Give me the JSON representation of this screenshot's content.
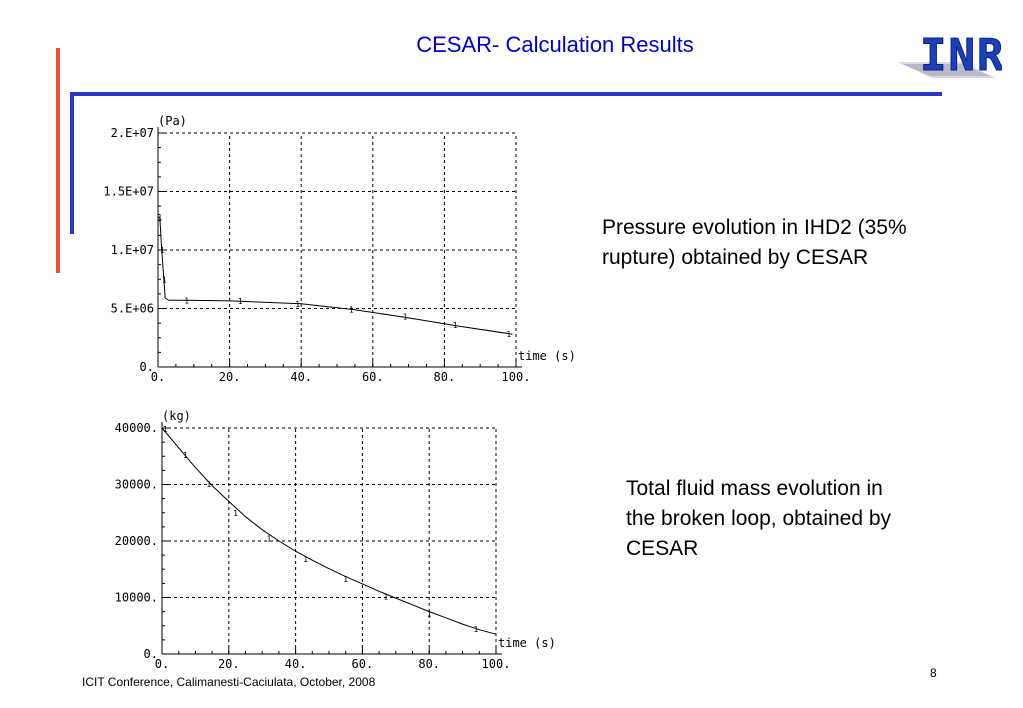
{
  "slide": {
    "title": "CESAR- Calculation Results",
    "footer": "ICIT Conference, Calimanesti-Caciulata, October, 2008",
    "page_number": "8",
    "logo_text": "INR",
    "desc_pressure": "Pressure evolution in IHD2 (35% rupture) obtained by CESAR",
    "desc_mass": "Total fluid mass evolution in the broken loop, obtained by CESAR"
  },
  "colors": {
    "title": "#0000cc",
    "accent_red": "#e8522e",
    "accent_blue": "#2a35c8"
  },
  "chart_data": [
    {
      "type": "line",
      "title": "",
      "ylabel": "(Pa)",
      "xlabel": "time (s)",
      "xlim": [
        0,
        100
      ],
      "ylim": [
        0,
        20000000
      ],
      "x_ticks": [
        "0.",
        "20.",
        "40.",
        "60.",
        "80.",
        "100."
      ],
      "y_ticks": [
        "0.",
        "5.E+06",
        "1.E+07",
        "1.5E+07",
        "2.E+07"
      ],
      "grid": true,
      "series": [
        {
          "marker": "1",
          "x": [
            0,
            0.5,
            1,
            1.5,
            2,
            3,
            8,
            20,
            40,
            55,
            70,
            84,
            99
          ],
          "y": [
            12800000,
            12800000,
            10200000,
            8000000,
            5900000,
            5700000,
            5700000,
            5650000,
            5400000,
            4900000,
            4200000,
            3500000,
            2800000
          ],
          "marker_x": [
            0.5,
            1.2,
            1.8,
            8,
            23,
            39,
            54,
            69,
            83,
            98
          ],
          "marker_y": [
            12800000,
            10000000,
            7500000,
            5700000,
            5650000,
            5400000,
            4900000,
            4300000,
            3600000,
            2800000
          ]
        }
      ]
    },
    {
      "type": "line",
      "title": "",
      "ylabel": "(kg)",
      "xlabel": "time (s)",
      "xlim": [
        0,
        100
      ],
      "ylim": [
        0,
        40000
      ],
      "x_ticks": [
        "0.",
        "20.",
        "40.",
        "60.",
        "80.",
        "100."
      ],
      "y_ticks": [
        "0.",
        "10000.",
        "20000.",
        "30000.",
        "40000."
      ],
      "grid": true,
      "series": [
        {
          "marker": "1",
          "x": [
            0,
            5,
            10,
            15,
            20,
            25,
            30,
            35,
            40,
            45,
            50,
            55,
            60,
            65,
            70,
            75,
            80,
            85,
            90,
            95,
            100
          ],
          "y": [
            40000,
            36500,
            33000,
            29800,
            27000,
            24300,
            22000,
            20000,
            18200,
            16600,
            15100,
            13700,
            12400,
            11100,
            9900,
            8700,
            7500,
            6400,
            5300,
            4300,
            3500
          ],
          "marker_x": [
            1,
            7,
            14,
            22,
            32,
            43,
            55,
            67,
            80,
            94
          ],
          "marker_y": [
            39800,
            35200,
            30100,
            25000,
            20400,
            16800,
            13300,
            10200,
            7200,
            4400
          ]
        }
      ]
    }
  ]
}
